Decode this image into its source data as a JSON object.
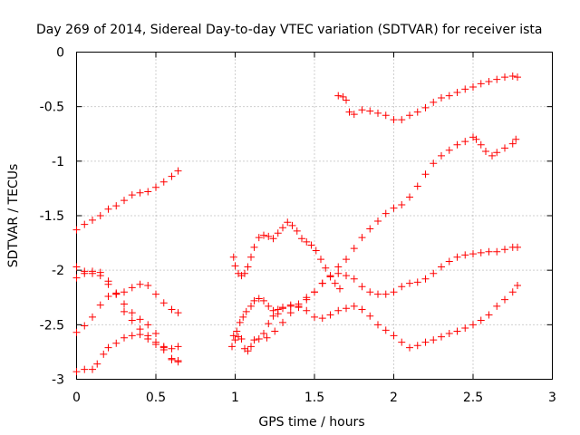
{
  "chart_data": {
    "type": "scatter",
    "title": "Day 269 of 2014, Sidereal Day-to-day VTEC variation (SDTVAR) for receiver ista",
    "xlabel": "GPS time / hours",
    "ylabel": "SDTVAR / TECUs",
    "xlim": [
      0,
      3
    ],
    "ylim": [
      -3,
      0
    ],
    "x_ticks": [
      "0",
      "0.5",
      "1",
      "1.5",
      "2",
      "2.5",
      "3"
    ],
    "y_ticks": [
      "0",
      "-0.5",
      "-1",
      "-1.5",
      "-2",
      "-2.5",
      "-3"
    ],
    "grid": true,
    "marker": "+",
    "color": "#ff0000",
    "series": [
      {
        "points": [
          [
            0.0,
            -1.63
          ],
          [
            0.05,
            -1.58
          ],
          [
            0.1,
            -1.54
          ],
          [
            0.15,
            -1.5
          ],
          [
            0.2,
            -1.44
          ],
          [
            0.25,
            -1.41
          ],
          [
            0.3,
            -1.36
          ],
          [
            0.35,
            -1.31
          ],
          [
            0.4,
            -1.29
          ],
          [
            0.45,
            -1.28
          ],
          [
            0.5,
            -1.24
          ],
          [
            0.55,
            -1.19
          ],
          [
            0.6,
            -1.14
          ],
          [
            0.64,
            -1.09
          ]
        ]
      },
      {
        "points": [
          [
            0.0,
            -2.93
          ],
          [
            0.05,
            -2.91
          ],
          [
            0.1,
            -2.91
          ],
          [
            0.13,
            -2.86
          ],
          [
            0.17,
            -2.77
          ],
          [
            0.2,
            -2.71
          ],
          [
            0.25,
            -2.67
          ],
          [
            0.3,
            -2.62
          ],
          [
            0.35,
            -2.6
          ],
          [
            0.4,
            -2.59
          ],
          [
            0.45,
            -2.63
          ],
          [
            0.5,
            -2.68
          ],
          [
            0.55,
            -2.71
          ],
          [
            0.6,
            -2.72
          ],
          [
            0.64,
            -2.7
          ]
        ]
      },
      {
        "points": [
          [
            0.0,
            -2.57
          ],
          [
            0.05,
            -2.51
          ],
          [
            0.1,
            -2.43
          ],
          [
            0.15,
            -2.32
          ],
          [
            0.2,
            -2.24
          ],
          [
            0.25,
            -2.21
          ],
          [
            0.3,
            -2.2
          ],
          [
            0.35,
            -2.16
          ],
          [
            0.4,
            -2.13
          ],
          [
            0.45,
            -2.14
          ],
          [
            0.5,
            -2.22
          ],
          [
            0.55,
            -2.3
          ],
          [
            0.6,
            -2.36
          ],
          [
            0.64,
            -2.39
          ]
        ]
      },
      {
        "points": [
          [
            0.0,
            -1.97
          ],
          [
            0.05,
            -2.01
          ],
          [
            0.1,
            -2.03
          ],
          [
            0.15,
            -2.05
          ],
          [
            0.2,
            -2.13
          ],
          [
            0.25,
            -2.22
          ],
          [
            0.3,
            -2.31
          ],
          [
            0.35,
            -2.39
          ],
          [
            0.4,
            -2.45
          ],
          [
            0.45,
            -2.5
          ],
          [
            0.5,
            -2.58
          ],
          [
            0.55,
            -2.7
          ],
          [
            0.6,
            -2.82
          ],
          [
            0.64,
            -2.84
          ]
        ]
      },
      {
        "points": [
          [
            0.0,
            -2.07
          ],
          [
            0.05,
            -2.03
          ],
          [
            0.1,
            -2.01
          ],
          [
            0.15,
            -2.02
          ],
          [
            0.2,
            -2.1
          ],
          [
            0.25,
            -2.22
          ],
          [
            0.3,
            -2.38
          ],
          [
            0.35,
            -2.46
          ],
          [
            0.4,
            -2.54
          ],
          [
            0.45,
            -2.6
          ],
          [
            0.5,
            -2.66
          ],
          [
            0.55,
            -2.73
          ],
          [
            0.6,
            -2.81
          ],
          [
            0.64,
            -2.83
          ]
        ]
      },
      {
        "points": [
          [
            0.99,
            -1.88
          ],
          [
            1.0,
            -1.96
          ],
          [
            1.02,
            -2.03
          ],
          [
            1.04,
            -2.05
          ],
          [
            1.06,
            -2.03
          ],
          [
            1.08,
            -1.97
          ],
          [
            1.1,
            -1.88
          ],
          [
            1.12,
            -1.79
          ],
          [
            1.15,
            -1.7
          ],
          [
            1.18,
            -1.68
          ],
          [
            1.21,
            -1.69
          ],
          [
            1.24,
            -1.71
          ],
          [
            1.27,
            -1.66
          ],
          [
            1.3,
            -1.61
          ],
          [
            1.33,
            -1.56
          ],
          [
            1.36,
            -1.59
          ],
          [
            1.39,
            -1.64
          ],
          [
            1.42,
            -1.71
          ],
          [
            1.45,
            -1.74
          ],
          [
            1.48,
            -1.77
          ],
          [
            1.51,
            -1.82
          ],
          [
            1.54,
            -1.9
          ],
          [
            1.57,
            -1.98
          ],
          [
            1.6,
            -2.06
          ],
          [
            1.63,
            -2.12
          ],
          [
            1.66,
            -2.17
          ]
        ]
      },
      {
        "points": [
          [
            0.98,
            -2.7
          ],
          [
            1.0,
            -2.64
          ],
          [
            1.02,
            -2.61
          ],
          [
            1.04,
            -2.63
          ],
          [
            1.06,
            -2.72
          ],
          [
            1.08,
            -2.74
          ],
          [
            1.1,
            -2.7
          ],
          [
            1.12,
            -2.64
          ],
          [
            1.15,
            -2.63
          ],
          [
            1.18,
            -2.58
          ],
          [
            1.21,
            -2.49
          ],
          [
            1.24,
            -2.42
          ],
          [
            1.27,
            -2.36
          ],
          [
            1.3,
            -2.34
          ],
          [
            1.35,
            -2.33
          ],
          [
            1.4,
            -2.31
          ],
          [
            1.45,
            -2.25
          ],
          [
            1.5,
            -2.2
          ],
          [
            1.55,
            -2.12
          ],
          [
            1.6,
            -2.06
          ],
          [
            1.65,
            -2.03
          ],
          [
            1.7,
            -2.05
          ],
          [
            1.75,
            -2.08
          ],
          [
            1.8,
            -2.15
          ],
          [
            1.85,
            -2.2
          ],
          [
            1.9,
            -2.22
          ],
          [
            1.95,
            -2.22
          ],
          [
            2.0,
            -2.2
          ],
          [
            2.05,
            -2.15
          ],
          [
            2.1,
            -2.12
          ],
          [
            2.15,
            -2.11
          ],
          [
            2.2,
            -2.08
          ],
          [
            2.25,
            -2.03
          ],
          [
            2.3,
            -1.97
          ],
          [
            2.35,
            -1.92
          ],
          [
            2.4,
            -1.88
          ],
          [
            2.45,
            -1.86
          ],
          [
            2.5,
            -1.85
          ],
          [
            2.55,
            -1.84
          ],
          [
            2.6,
            -1.83
          ],
          [
            2.65,
            -1.83
          ],
          [
            2.7,
            -1.81
          ],
          [
            2.75,
            -1.79
          ],
          [
            2.78,
            -1.79
          ]
        ]
      },
      {
        "points": [
          [
            0.99,
            -2.6
          ],
          [
            1.01,
            -2.56
          ],
          [
            1.03,
            -2.48
          ],
          [
            1.05,
            -2.43
          ],
          [
            1.07,
            -2.38
          ],
          [
            1.1,
            -2.33
          ],
          [
            1.12,
            -2.28
          ],
          [
            1.15,
            -2.26
          ],
          [
            1.18,
            -2.28
          ],
          [
            1.21,
            -2.33
          ],
          [
            1.24,
            -2.37
          ],
          [
            1.27,
            -2.4
          ],
          [
            1.3,
            -2.35
          ],
          [
            1.35,
            -2.32
          ],
          [
            1.4,
            -2.33
          ],
          [
            1.45,
            -2.37
          ],
          [
            1.5,
            -2.43
          ],
          [
            1.55,
            -2.44
          ],
          [
            1.6,
            -2.41
          ],
          [
            1.65,
            -2.37
          ],
          [
            1.7,
            -2.35
          ],
          [
            1.75,
            -2.33
          ],
          [
            1.8,
            -2.36
          ],
          [
            1.85,
            -2.42
          ],
          [
            1.9,
            -2.5
          ],
          [
            1.95,
            -2.55
          ],
          [
            2.0,
            -2.6
          ],
          [
            2.05,
            -2.66
          ],
          [
            2.1,
            -2.71
          ],
          [
            2.15,
            -2.69
          ],
          [
            2.2,
            -2.66
          ],
          [
            2.25,
            -2.64
          ],
          [
            2.3,
            -2.61
          ],
          [
            2.35,
            -2.58
          ],
          [
            2.4,
            -2.56
          ],
          [
            2.45,
            -2.53
          ],
          [
            2.5,
            -2.5
          ],
          [
            2.55,
            -2.46
          ],
          [
            2.6,
            -2.41
          ],
          [
            2.65,
            -2.33
          ],
          [
            2.7,
            -2.27
          ],
          [
            2.75,
            -2.2
          ],
          [
            2.78,
            -2.14
          ]
        ]
      },
      {
        "points": [
          [
            1.2,
            -2.62
          ],
          [
            1.25,
            -2.56
          ],
          [
            1.3,
            -2.48
          ],
          [
            1.35,
            -2.39
          ],
          [
            1.4,
            -2.34
          ],
          [
            1.45,
            -2.27
          ],
          [
            1.5,
            -2.2
          ],
          [
            1.55,
            -2.12
          ],
          [
            1.6,
            -2.05
          ],
          [
            1.65,
            -1.97
          ],
          [
            1.7,
            -1.9
          ],
          [
            1.75,
            -1.8
          ],
          [
            1.8,
            -1.7
          ],
          [
            1.85,
            -1.62
          ],
          [
            1.9,
            -1.55
          ],
          [
            1.95,
            -1.48
          ],
          [
            2.0,
            -1.43
          ],
          [
            2.05,
            -1.4
          ],
          [
            2.1,
            -1.33
          ],
          [
            2.15,
            -1.23
          ],
          [
            2.2,
            -1.12
          ],
          [
            2.25,
            -1.02
          ],
          [
            2.3,
            -0.95
          ],
          [
            2.35,
            -0.9
          ],
          [
            2.4,
            -0.85
          ],
          [
            2.45,
            -0.82
          ],
          [
            2.5,
            -0.78
          ],
          [
            2.52,
            -0.8
          ],
          [
            2.55,
            -0.85
          ],
          [
            2.58,
            -0.91
          ],
          [
            2.62,
            -0.95
          ],
          [
            2.65,
            -0.92
          ],
          [
            2.7,
            -0.88
          ],
          [
            2.75,
            -0.84
          ],
          [
            2.77,
            -0.8
          ]
        ]
      },
      {
        "points": [
          [
            1.65,
            -0.4
          ],
          [
            1.68,
            -0.41
          ],
          [
            1.7,
            -0.44
          ],
          [
            1.72,
            -0.55
          ],
          [
            1.75,
            -0.57
          ],
          [
            1.8,
            -0.53
          ],
          [
            1.85,
            -0.54
          ],
          [
            1.9,
            -0.56
          ],
          [
            1.95,
            -0.58
          ],
          [
            2.0,
            -0.62
          ],
          [
            2.05,
            -0.62
          ],
          [
            2.1,
            -0.58
          ],
          [
            2.15,
            -0.55
          ],
          [
            2.2,
            -0.51
          ],
          [
            2.25,
            -0.46
          ],
          [
            2.3,
            -0.42
          ],
          [
            2.35,
            -0.4
          ],
          [
            2.4,
            -0.37
          ],
          [
            2.45,
            -0.34
          ],
          [
            2.5,
            -0.32
          ],
          [
            2.55,
            -0.29
          ],
          [
            2.6,
            -0.27
          ],
          [
            2.65,
            -0.25
          ],
          [
            2.7,
            -0.23
          ],
          [
            2.75,
            -0.22
          ],
          [
            2.78,
            -0.23
          ]
        ]
      }
    ]
  }
}
